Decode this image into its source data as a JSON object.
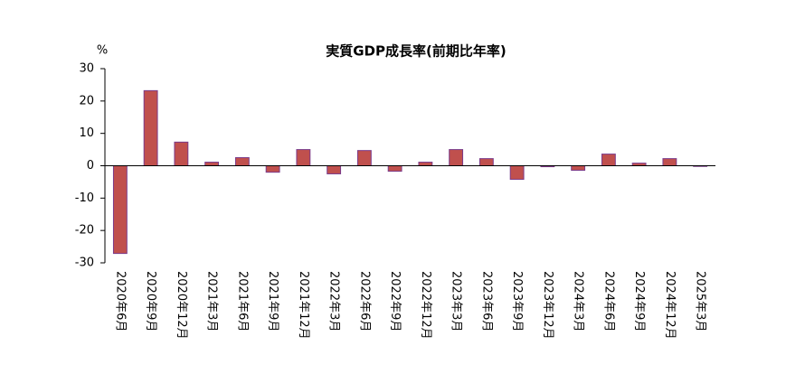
{
  "chart_data": {
    "type": "bar",
    "title": "実質GDP成長率(前期比年率)",
    "ylabel": "%",
    "categories": [
      "2020年6月",
      "2020年9月",
      "2020年12月",
      "2021年3月",
      "2021年6月",
      "2021年9月",
      "2021年12月",
      "2022年3月",
      "2022年6月",
      "2022年9月",
      "2022年12月",
      "2023年3月",
      "2023年6月",
      "2023年9月",
      "2023年12月",
      "2024年3月",
      "2024年6月",
      "2024年9月",
      "2024年12月",
      "2025年3月"
    ],
    "values": [
      -27.1,
      23.2,
      7.3,
      1.1,
      2.5,
      -2.0,
      5.0,
      -2.5,
      4.7,
      -1.7,
      1.1,
      5.0,
      2.2,
      -4.2,
      -0.3,
      -1.4,
      3.6,
      0.8,
      2.2,
      -0.2
    ],
    "color": "#c0504d",
    "ylim": [
      -30,
      30
    ],
    "yticks": [
      -30,
      -20,
      -10,
      0,
      10,
      20,
      30
    ],
    "grid": false
  }
}
